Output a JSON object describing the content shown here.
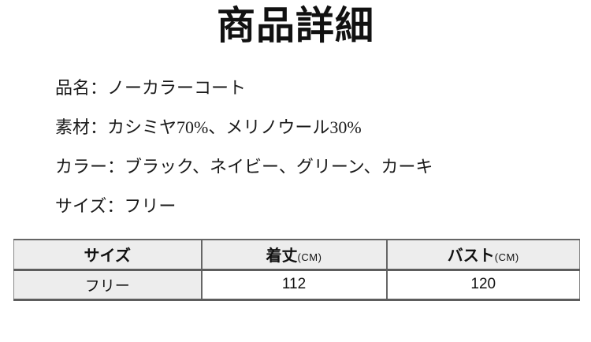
{
  "page": {
    "title": "商品詳細"
  },
  "spec_separator": "：",
  "specs": [
    {
      "label": "品名",
      "value": "ノーカラーコート"
    },
    {
      "label": "素材",
      "value": "カシミヤ70%、メリノウール30%"
    },
    {
      "label": "カラー",
      "value": "ブラック、ネイビー、グリーン、カーキ"
    },
    {
      "label": "サイズ",
      "value": "フリー"
    }
  ],
  "size_table": {
    "header": [
      {
        "label": "サイズ",
        "unit": ""
      },
      {
        "label": "着丈",
        "unit": "(CM)"
      },
      {
        "label": "バスト",
        "unit": "(CM)"
      }
    ],
    "rows": [
      [
        "フリー",
        "112",
        "120"
      ]
    ]
  },
  "colors": {
    "table_header_bg": "#ededed",
    "table_border": "#666666",
    "text": "#1a1a1a"
  }
}
